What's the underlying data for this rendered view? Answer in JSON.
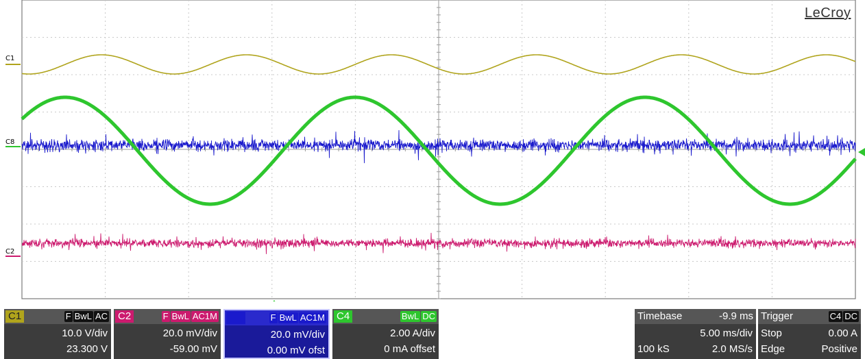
{
  "brand": "LeCroy",
  "colors": {
    "c1": "#b0a41c",
    "c2": "#cc1a6e",
    "c3": "#1a1acc",
    "c4": "#2ec62e",
    "grid_major": "#9a9a9a",
    "grid_minor": "#c8c8c8",
    "panel_bg": "#3c3c3c",
    "panel_header": "#565656"
  },
  "channels": {
    "c1": {
      "name": "C1",
      "marker": "C1",
      "tags": [
        "F",
        "BwL",
        "AC"
      ],
      "scale": "10.0 V/div",
      "offset": "23.300 V"
    },
    "c2": {
      "name": "C2",
      "marker": "C2",
      "tags": [
        "F",
        "BwL",
        "AC1M"
      ],
      "scale": "20.0 mV/div",
      "offset": "-59.00 mV"
    },
    "c3": {
      "name": "",
      "marker": "C8",
      "tags": [
        "F",
        "BwL",
        "AC1M"
      ],
      "scale": "20.0 mV/div",
      "offset": "0.00 mV ofst"
    },
    "c4": {
      "name": "C4",
      "marker": "",
      "tags": [
        "BwL",
        "DC"
      ],
      "scale": "2.00 A/div",
      "offset": "0 mA offset"
    }
  },
  "timebase": {
    "label": "Timebase",
    "delay": "-9.9 ms",
    "scale": "5.00 ms/div",
    "samples": "100 kS",
    "rate": "2.0 MS/s"
  },
  "trigger": {
    "label": "Trigger",
    "source": "C4",
    "coupling": "DC",
    "mode": "Stop",
    "level": "0.00 A",
    "type": "Edge",
    "slope": "Positive"
  }
}
